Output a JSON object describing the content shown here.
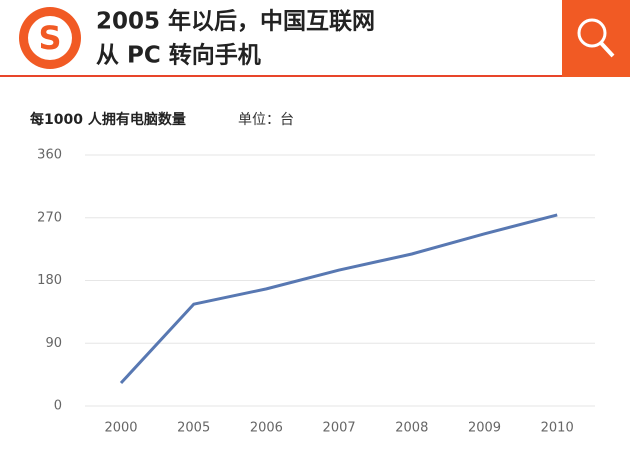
{
  "header": {
    "title_lines": [
      "2005 年以后，中国互联网",
      "从 PC 转向手机"
    ]
  },
  "chart_data": {
    "type": "line",
    "title": "每1000 人拥有电脑数量",
    "subtitle": "单位：台",
    "categories": [
      "2000",
      "2005",
      "2006",
      "2007",
      "2008",
      "2009",
      "2010"
    ],
    "series": [
      {
        "name": "每1000 人拥有电脑数量",
        "color": "#5878b2",
        "values": [
          33,
          146,
          168,
          195,
          218,
          247,
          274
        ]
      }
    ],
    "ylim": [
      0,
      360
    ],
    "yticks": [
      0,
      90,
      180,
      270,
      360
    ],
    "grid": true
  }
}
